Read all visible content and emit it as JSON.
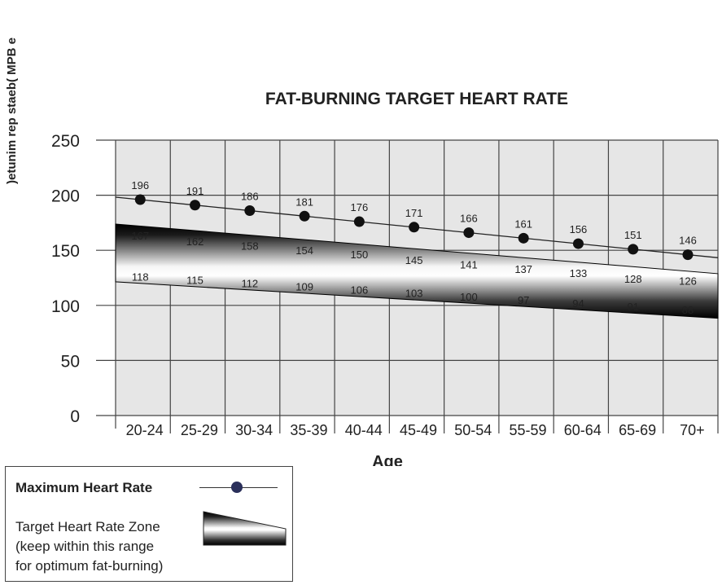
{
  "chart_data": {
    "type": "line",
    "title": "FAT-BURNING TARGET HEART RATE",
    "ylabel": ")etunim rep staeb( MPB e",
    "xlabel": "Age",
    "ylim": [
      0,
      250
    ],
    "yticks": [
      "0",
      "50",
      "100",
      "150",
      "200",
      "250"
    ],
    "categories": [
      "20-24",
      "25-29",
      "30-34",
      "35-39",
      "40-44",
      "45-49",
      "50-54",
      "55-59",
      "60-64",
      "65-69",
      "70+"
    ],
    "grid": true,
    "series": [
      {
        "name": "Maximum Heart Rate",
        "values": [
          196,
          191,
          186,
          181,
          176,
          171,
          166,
          161,
          156,
          151,
          146
        ]
      },
      {
        "name": "",
        "values": [
          167,
          162,
          158,
          154,
          150,
          145,
          141,
          137,
          133,
          128,
          126
        ]
      },
      {
        "name": "",
        "values": [
          118,
          115,
          112,
          109,
          106,
          103,
          100,
          97,
          94,
          91,
          88
        ]
      }
    ]
  },
  "legend": {
    "max_label": "Maximum Heart Rate",
    "zone_line1": "Target Heart Rate Zone",
    "zone_line2": "(keep within this range",
    "zone_line3": "for optimum fat-burning)"
  },
  "colors": {
    "dot": "#111111",
    "grid": "#444444",
    "plot_bg": "#e6e6e6",
    "legend_dot": "#2a2f5a"
  }
}
